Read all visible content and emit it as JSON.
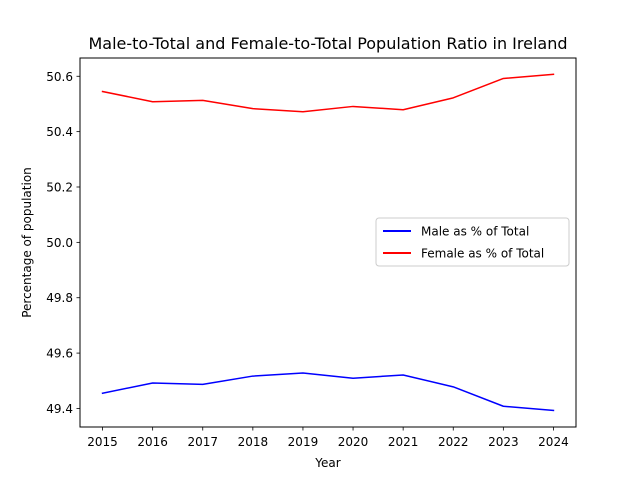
{
  "chart_data": {
    "type": "line",
    "title": "Male-to-Total and Female-to-Total Population Ratio in Ireland",
    "xlabel": "Year",
    "ylabel": "Percentage of population",
    "x": [
      2015,
      2016,
      2017,
      2018,
      2019,
      2020,
      2021,
      2022,
      2023,
      2024
    ],
    "xticks": [
      "2015",
      "2016",
      "2017",
      "2018",
      "2019",
      "2020",
      "2021",
      "2022",
      "2023",
      "2024"
    ],
    "yticks": [
      49.4,
      49.6,
      49.8,
      50.0,
      50.2,
      50.4,
      50.6
    ],
    "ytick_labels": [
      "49.4",
      "49.6",
      "49.8",
      "50.0",
      "50.2",
      "50.4",
      "50.6"
    ],
    "xlim": [
      2014.55,
      2024.45
    ],
    "ylim": [
      49.333,
      50.666
    ],
    "grid": false,
    "legend_position": "center-right",
    "series": [
      {
        "name": "Male as % of Total",
        "color": "#0000ff",
        "values": [
          49.455,
          49.492,
          49.487,
          49.517,
          49.528,
          49.509,
          49.521,
          49.478,
          49.408,
          49.393
        ]
      },
      {
        "name": "Female as % of Total",
        "color": "#ff0000",
        "values": [
          50.545,
          50.508,
          50.513,
          50.483,
          50.472,
          50.491,
          50.479,
          50.522,
          50.592,
          50.607
        ]
      }
    ]
  }
}
